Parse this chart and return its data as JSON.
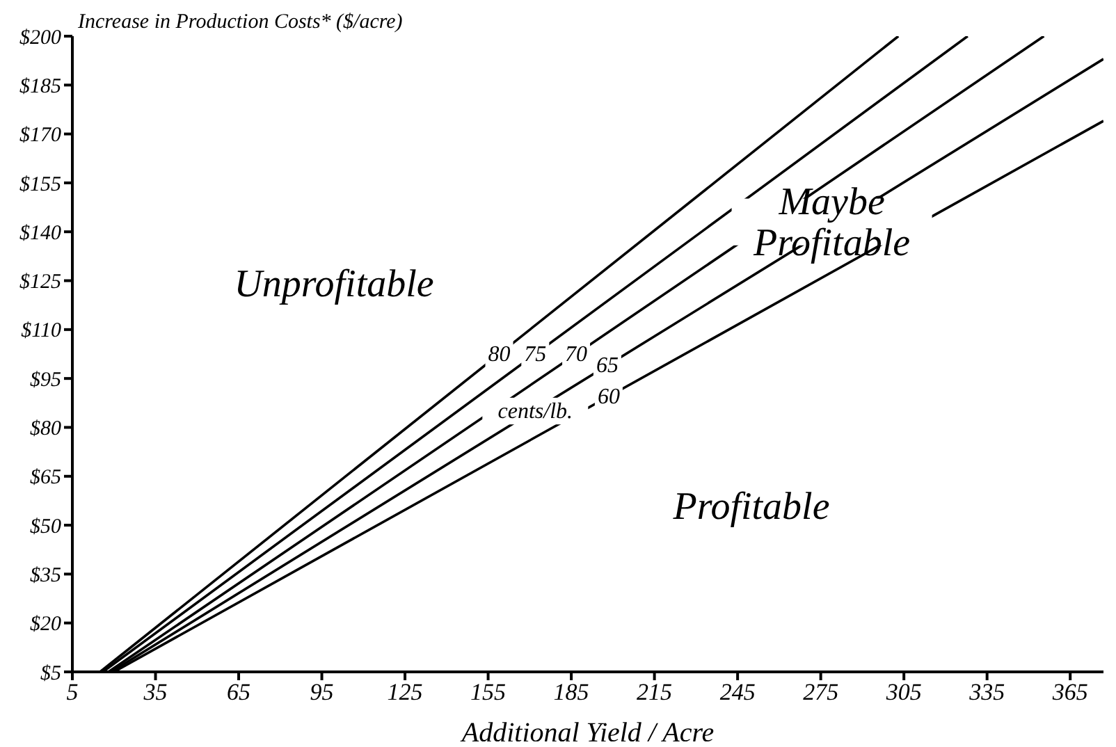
{
  "chart_data": {
    "type": "line",
    "ylabel": "Increase in Production Costs* ($/acre)",
    "xlabel": "Additional Yield / Acre",
    "xlim": [
      5,
      377
    ],
    "xticks": [
      5,
      35,
      65,
      95,
      125,
      155,
      185,
      215,
      245,
      275,
      305,
      335,
      365
    ],
    "ylim": [
      5,
      200
    ],
    "yticks": [
      {
        "value": 5,
        "label": "$5"
      },
      {
        "value": 20,
        "label": "$20"
      },
      {
        "value": 35,
        "label": "$35"
      },
      {
        "value": 50,
        "label": "$50"
      },
      {
        "value": 65,
        "label": "$65"
      },
      {
        "value": 80,
        "label": "$80"
      },
      {
        "value": 95,
        "label": "$95"
      },
      {
        "value": 110,
        "label": "$110"
      },
      {
        "value": 125,
        "label": "$125"
      },
      {
        "value": 140,
        "label": "$140"
      },
      {
        "value": 155,
        "label": "$155"
      },
      {
        "value": 170,
        "label": "$170"
      },
      {
        "value": 185,
        "label": "$185"
      },
      {
        "value": 200,
        "label": "$200"
      }
    ],
    "marker": "none",
    "line_style": "solid",
    "series": [
      {
        "name": "80",
        "color": "#000000",
        "x": [
          15,
          303
        ],
        "values": [
          5,
          200
        ]
      },
      {
        "name": "75",
        "color": "#000000",
        "x": [
          16,
          328
        ],
        "values": [
          5,
          200
        ]
      },
      {
        "name": "70",
        "color": "#000000",
        "x": [
          18,
          355.5
        ],
        "values": [
          5,
          200
        ]
      },
      {
        "name": "65",
        "color": "#000000",
        "x": [
          19,
          377
        ],
        "values": [
          5,
          193
        ]
      },
      {
        "name": "60",
        "color": "#000000",
        "x": [
          20,
          377
        ],
        "values": [
          5,
          174
        ]
      }
    ],
    "annotations": [
      "Unprofitable",
      {
        "text": "Maybe\nProfitable",
        "x": 279,
        "y": 143
      },
      "Profitable",
      {
        "text": "cents/lb.",
        "x": 172,
        "y": 85
      }
    ]
  }
}
